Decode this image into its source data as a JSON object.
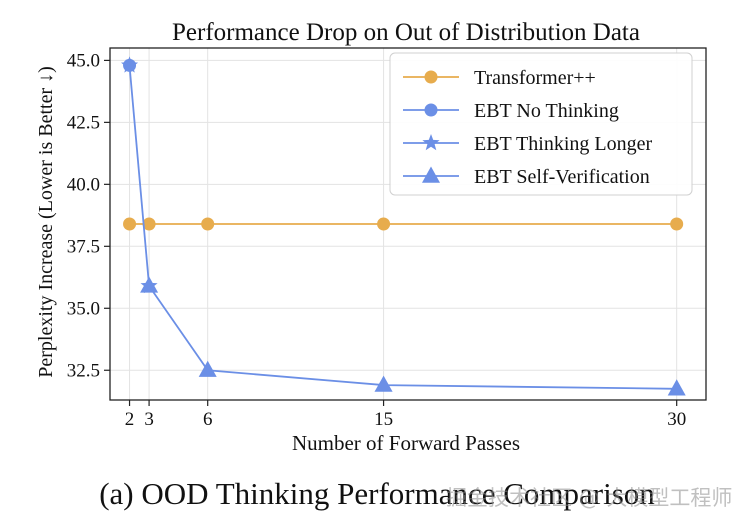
{
  "chart_data": {
    "type": "line",
    "title": "Performance Drop on Out of Distribution Data",
    "xlabel": "Number of Forward Passes",
    "ylabel": "Perplexity Increase (Lower is Better ↓)",
    "x_ticks": [
      2,
      3,
      6,
      15,
      30
    ],
    "x_tick_labels": [
      "2",
      "3",
      "6",
      "15",
      "30"
    ],
    "xlim": [
      1,
      31.5
    ],
    "y_ticks": [
      32.5,
      35.0,
      37.5,
      40.0,
      42.5,
      45.0
    ],
    "y_tick_labels": [
      "32.5",
      "35.0",
      "37.5",
      "40.0",
      "42.5",
      "45.0"
    ],
    "ylim": [
      31.3,
      45.5
    ],
    "grid": true,
    "legend_position": "top-right",
    "series": [
      {
        "name": "Transformer++",
        "color": "#E7AC4D",
        "marker": "circle",
        "x": [
          2,
          3,
          6,
          15,
          30
        ],
        "y": [
          38.4,
          38.4,
          38.4,
          38.4,
          38.4
        ]
      },
      {
        "name": "EBT No Thinking",
        "color": "#6B8FE6",
        "marker": "circle",
        "x": [
          2
        ],
        "y": [
          44.8
        ]
      },
      {
        "name": "EBT Thinking Longer",
        "color": "#6B8FE6",
        "marker": "star",
        "x": [
          2,
          3
        ],
        "y": [
          44.8,
          35.9
        ]
      },
      {
        "name": "EBT Self-Verification",
        "color": "#6B8FE6",
        "marker": "triangle",
        "x": [
          3,
          6,
          15,
          30
        ],
        "y": [
          35.9,
          32.5,
          31.9,
          31.75
        ]
      }
    ]
  },
  "caption": "(a) OOD Thinking Performance Comparison",
  "watermark": "掘金技术社区 @ 大模型工程师"
}
